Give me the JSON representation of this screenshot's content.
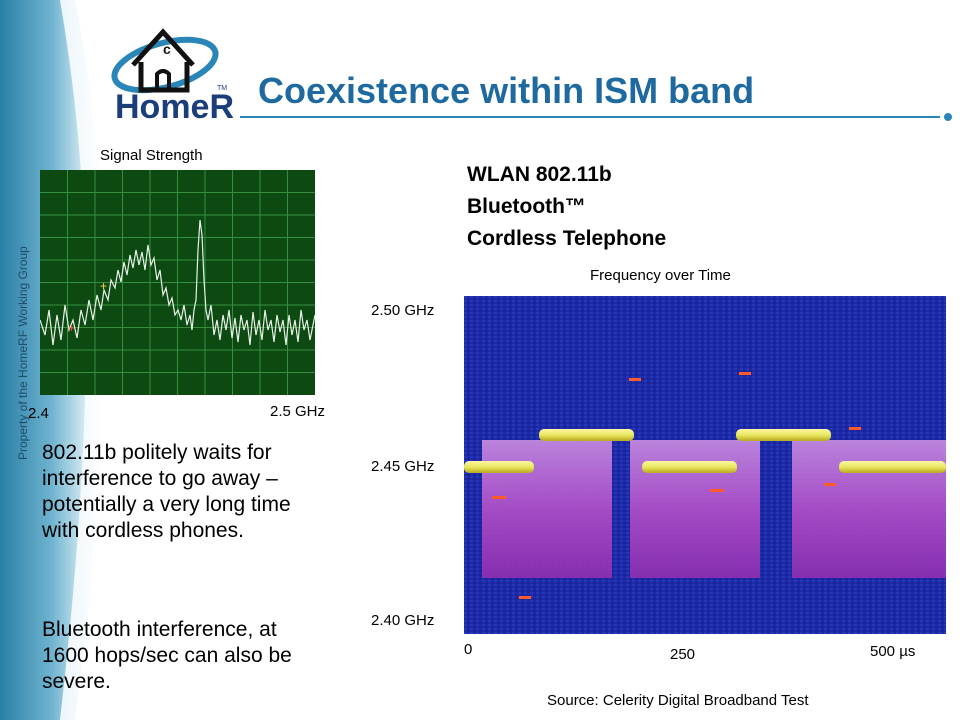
{
  "header": {
    "logo_text": "HomeRF",
    "logo_tm": "TM",
    "title": "Coexistence within ISM band"
  },
  "sidebar": {
    "watermark": "Property of the HomeRF Working Group"
  },
  "spectrum_panel": {
    "label": "Signal Strength",
    "x_start": "2.4",
    "x_end": "2.5 GHz"
  },
  "legend": {
    "items": [
      "WLAN 802.11b",
      "Bluetooth™",
      "Cordless Telephone"
    ]
  },
  "waterfall_panel": {
    "label": "Frequency over Time",
    "y_ticks": [
      "2.50 GHz",
      "2.45 GHz",
      "2.40 GHz"
    ],
    "x_ticks": [
      "0",
      "250",
      "500 µs"
    ],
    "source": "Source: Celerity Digital Broadband Test"
  },
  "body": {
    "paragraph1": "802.11b politely waits for interference to go away – potentially a very long time with cordless phones.",
    "paragraph2": "Bluetooth interference, at 1600 hops/sec can also be severe."
  },
  "colors": {
    "title_blue": "#1e6aa0",
    "sidebar_teal": "#3a8fb0",
    "spectrum_bg": "#0d4a12",
    "waterfall_bg": "#1d2aa8",
    "magenta": "#b04fc8",
    "wlan_yellow": "#e8e860"
  }
}
